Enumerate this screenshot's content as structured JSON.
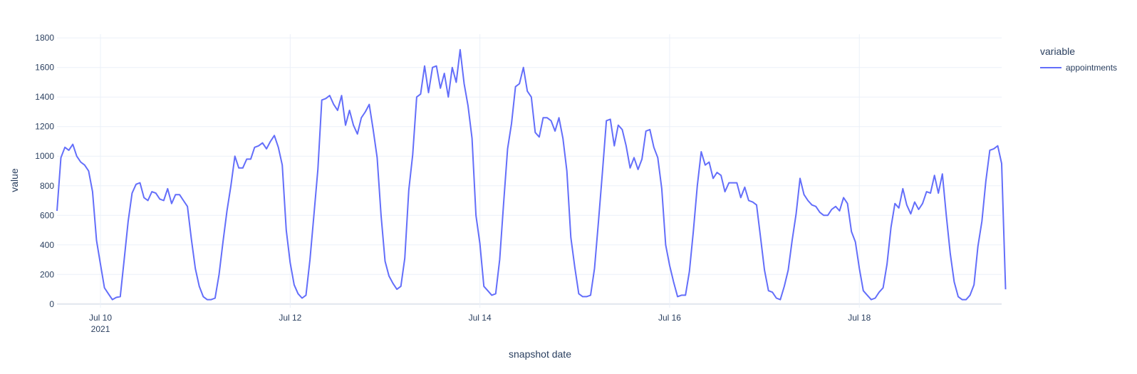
{
  "chart_data": {
    "type": "line",
    "xlabel": "snapshot date",
    "ylabel": "value",
    "legend_title": "variable",
    "ylim": [
      -25,
      1825
    ],
    "yticks": [
      0,
      200,
      400,
      600,
      800,
      1000,
      1200,
      1400,
      1600,
      1800
    ],
    "xlim": [
      "2021-07-09 13:00",
      "2021-07-19 12:00"
    ],
    "xticks": [
      {
        "date": "2021-07-10",
        "label": "Jul 10",
        "sublabel": "2021"
      },
      {
        "date": "2021-07-12",
        "label": "Jul 12",
        "sublabel": ""
      },
      {
        "date": "2021-07-14",
        "label": "Jul 14",
        "sublabel": ""
      },
      {
        "date": "2021-07-16",
        "label": "Jul 16",
        "sublabel": ""
      },
      {
        "date": "2021-07-18",
        "label": "Jul 18",
        "sublabel": ""
      }
    ],
    "grid": true,
    "legend_position": "top-right",
    "series": [
      {
        "name": "appointments",
        "color": "#636efa",
        "x_start": "2021-07-09 13:00",
        "x_step_hours": 1,
        "values": [
          630,
          990,
          1060,
          1040,
          1080,
          1000,
          960,
          940,
          900,
          760,
          430,
          270,
          110,
          70,
          30,
          45,
          50,
          300,
          560,
          750,
          810,
          820,
          720,
          700,
          760,
          750,
          710,
          700,
          780,
          680,
          740,
          740,
          700,
          660,
          440,
          240,
          120,
          50,
          30,
          30,
          40,
          200,
          420,
          630,
          800,
          1000,
          920,
          920,
          980,
          980,
          1060,
          1070,
          1090,
          1050,
          1100,
          1140,
          1060,
          940,
          500,
          280,
          130,
          70,
          40,
          60,
          300,
          600,
          910,
          1380,
          1390,
          1410,
          1350,
          1310,
          1410,
          1210,
          1310,
          1210,
          1150,
          1260,
          1300,
          1350,
          1180,
          990,
          600,
          290,
          190,
          140,
          100,
          120,
          310,
          770,
          1010,
          1400,
          1420,
          1610,
          1430,
          1600,
          1610,
          1460,
          1560,
          1400,
          1600,
          1500,
          1720,
          1490,
          1340,
          1120,
          600,
          410,
          120,
          90,
          60,
          70,
          300,
          680,
          1050,
          1220,
          1470,
          1490,
          1600,
          1440,
          1400,
          1160,
          1130,
          1260,
          1260,
          1240,
          1170,
          1260,
          1120,
          900,
          450,
          250,
          70,
          50,
          50,
          60,
          240,
          560,
          890,
          1240,
          1250,
          1070,
          1210,
          1180,
          1070,
          920,
          990,
          910,
          980,
          1170,
          1180,
          1060,
          990,
          780,
          400,
          260,
          150,
          50,
          60,
          60,
          220,
          490,
          800,
          1030,
          940,
          960,
          850,
          890,
          870,
          760,
          820,
          820,
          820,
          720,
          790,
          700,
          690,
          670,
          450,
          230,
          90,
          80,
          40,
          30,
          120,
          230,
          430,
          610,
          850,
          740,
          700,
          670,
          660,
          620,
          600,
          600,
          640,
          660,
          630,
          720,
          680,
          490,
          420,
          240,
          90,
          60,
          30,
          40,
          80,
          110,
          270,
          520,
          680,
          650,
          780,
          670,
          610,
          690,
          640,
          680,
          760,
          750,
          870,
          750,
          880,
          600,
          340,
          150,
          50,
          30,
          30,
          60,
          130,
          390,
          560,
          830,
          1040,
          1050,
          1070,
          950,
          100
        ]
      }
    ]
  }
}
